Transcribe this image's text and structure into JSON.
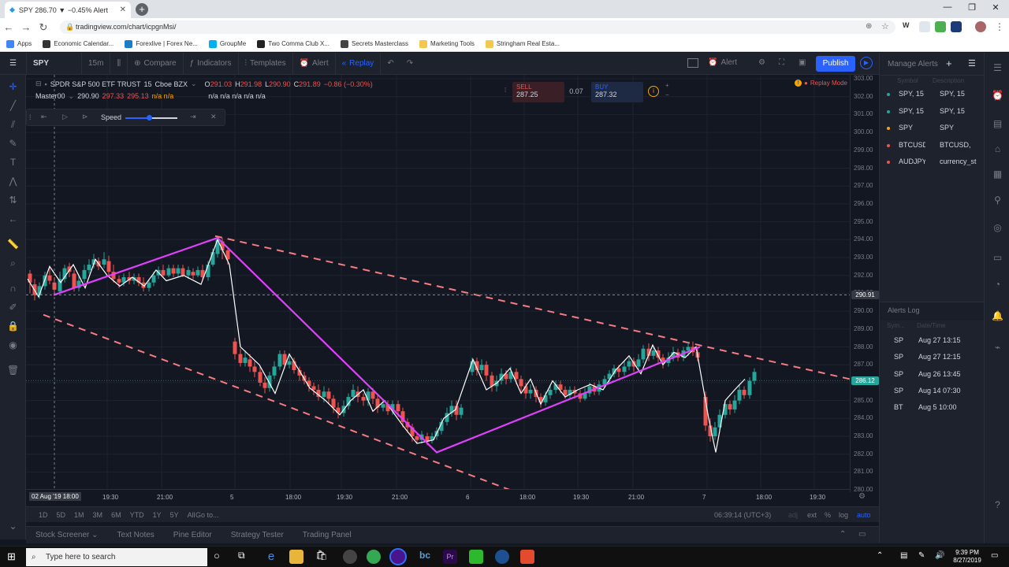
{
  "browser": {
    "tab_title": "SPY 286.70 ▼ −0.45% Alert",
    "url": "tradingview.com/chart/icpgnMsi/",
    "bookmarks": [
      "Apps",
      "Economic Calendar...",
      "Forexlive | Forex Ne...",
      "GroupMe",
      "Two Comma Club X...",
      "Secrets Masterclass",
      "Marketing Tools",
      "Stringham Real Esta..."
    ]
  },
  "toolbar": {
    "symbol": "SPY",
    "interval": "15m",
    "compare": "Compare",
    "indicators": "Indicators",
    "templates": "Templates",
    "alert": "Alert",
    "replay": "Replay",
    "alert2": "Alert",
    "publish": "Publish"
  },
  "legend": {
    "title": "SPDR S&P 500 ETF TRUST",
    "interval": "15",
    "exchange": "Cboe BZX",
    "o_label": "O",
    "o": "291.03",
    "h_label": "H",
    "h": "291.98",
    "l_label": "L",
    "l": "290.90",
    "c_label": "C",
    "c": "291.89",
    "change": "−0.86 (−0.30%)",
    "indicator_name": "Master00",
    "ind_v1": "290.90",
    "ind_v2": "297.33",
    "ind_v3": "295.13",
    "ind_v4": "n/a n/a",
    "ind_v5": "n/a n/a n/a n/a n/a"
  },
  "replay_controls": {
    "speed_label": "Speed",
    "speed_fraction": 0.45
  },
  "trade": {
    "sell_label": "SELL",
    "sell_price": "287.25",
    "spread": "0.07",
    "buy_label": "BUY",
    "buy_price": "287.32"
  },
  "replay_mode": "Replay Mode",
  "price_scale": {
    "labels": [
      "303.00",
      "302.00",
      "301.00",
      "300.00",
      "299.00",
      "298.00",
      "297.00",
      "296.00",
      "295.00",
      "294.00",
      "293.00",
      "292.00",
      "291.00",
      "290.00",
      "289.00",
      "288.00",
      "287.00",
      "286.00",
      "285.00",
      "284.00",
      "283.00",
      "282.00",
      "281.00",
      "280.00"
    ],
    "crosshair_price": "290.91",
    "last_price": "286.12",
    "last_price_color": "#26a69a"
  },
  "time_scale": {
    "labels": [
      "02 Aug '19",
      "18:00",
      "19:30",
      "21:00",
      "5",
      "18:00",
      "19:30",
      "21:00",
      "6",
      "18:00",
      "19:30",
      "21:00",
      "7",
      "18:00",
      "19:30"
    ]
  },
  "range_bar": {
    "ranges": [
      "1D",
      "5D",
      "1M",
      "3M",
      "6M",
      "YTD",
      "1Y",
      "5Y",
      "All"
    ],
    "goto": "Go to...",
    "clock": "06:39:14 (UTC+3)",
    "adj": "adj",
    "ext": "ext",
    "pct": "%",
    "log": "log",
    "auto": "auto"
  },
  "bottom_tabs": [
    "Stock Screener",
    "Text Notes",
    "Pine Editor",
    "Strategy Tester",
    "Trading Panel"
  ],
  "alerts_panel": {
    "title": "Manage Alerts",
    "col_symbol": "Symbol",
    "col_desc": "Description",
    "items": [
      {
        "symbol": "SPY, 15",
        "desc": "SPY, 15",
        "dot": "#26a69a"
      },
      {
        "symbol": "SPY, 15",
        "desc": "SPY, 15",
        "dot": "#26a69a"
      },
      {
        "symbol": "SPY",
        "desc": "SPY",
        "dot": "#f7a600"
      },
      {
        "symbol": "BTCUSD",
        "desc": "BTCUSD,",
        "dot": "#ef5350"
      },
      {
        "symbol": "AUDJPY",
        "desc": "currency_st",
        "dot": "#ef5350"
      }
    ],
    "log_title": "Alerts Log",
    "log_col_symbol": "Sym...",
    "log_col_date": "Date/Time",
    "log_items": [
      {
        "symbol": "SP",
        "date": "Aug 27 13:15"
      },
      {
        "symbol": "SP",
        "date": "Aug 27 12:15"
      },
      {
        "symbol": "SP",
        "date": "Aug 26 13:45"
      },
      {
        "symbol": "SP",
        "date": "Aug 14 07:30"
      },
      {
        "symbol": "BT",
        "date": "Aug 5 10:00"
      }
    ]
  },
  "taskbar": {
    "search_placeholder": "Type here to search",
    "time": "9:39 PM",
    "date": "8/27/2019"
  },
  "colors": {
    "up": "#26a69a",
    "down": "#ef5350",
    "zigzag": "#e040fb",
    "channel": "#f77c80"
  }
}
